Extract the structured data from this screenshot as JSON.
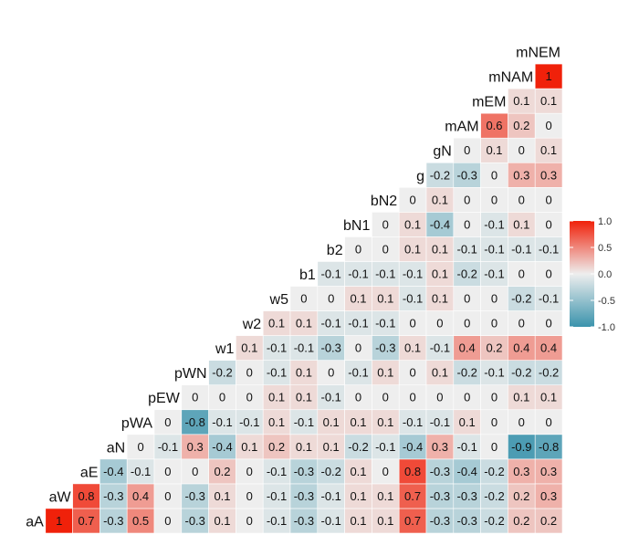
{
  "chart_data": {
    "type": "heatmap",
    "variables": [
      "aA",
      "aW",
      "aE",
      "aN",
      "pWA",
      "pEW",
      "pWN",
      "w1",
      "w2",
      "w5",
      "b1",
      "b2",
      "bN1",
      "bN2",
      "g",
      "gN",
      "mAM",
      "mEM",
      "mNAM",
      "mNEM"
    ],
    "values": [
      [
        1,
        0.7,
        -0.3,
        0.5,
        0,
        -0.3,
        0.1,
        0,
        -0.1,
        -0.3,
        -0.1,
        0.1,
        0.1,
        0.7,
        -0.3,
        -0.3,
        -0.2,
        0.2,
        0.2
      ],
      [
        0.8,
        -0.3,
        0.4,
        0,
        -0.3,
        0.1,
        0,
        -0.1,
        -0.3,
        -0.1,
        0.1,
        0.1,
        0.7,
        -0.3,
        -0.3,
        -0.2,
        0.2,
        0.3
      ],
      [
        -0.4,
        -0.1,
        0,
        0,
        0.2,
        0,
        -0.1,
        -0.3,
        -0.2,
        0.1,
        0,
        0.8,
        -0.3,
        -0.4,
        -0.2,
        0.3,
        0.3
      ],
      [
        0,
        -0.1,
        0.3,
        -0.4,
        0.1,
        0.2,
        0.1,
        0.1,
        -0.2,
        -0.1,
        -0.4,
        0.3,
        -0.1,
        0,
        -0.9,
        -0.8
      ],
      [
        0,
        -0.8,
        -0.1,
        -0.1,
        0.1,
        -0.1,
        0.1,
        0.1,
        0.1,
        -0.1,
        -0.1,
        0.1,
        0,
        0,
        0
      ],
      [
        0,
        0,
        0,
        0.1,
        0.1,
        -0.1,
        0,
        0,
        0,
        0,
        0,
        0,
        0.1,
        0.1
      ],
      [
        -0.2,
        0,
        -0.1,
        0.1,
        0,
        -0.1,
        0.1,
        0,
        0.1,
        -0.2,
        -0.1,
        -0.2,
        -0.2
      ],
      [
        0.1,
        -0.1,
        -0.1,
        -0.3,
        0,
        -0.3,
        0.1,
        -0.1,
        0.4,
        0.2,
        0.4,
        0.4
      ],
      [
        0.1,
        0.1,
        -0.1,
        -0.1,
        -0.1,
        0,
        0,
        0,
        0,
        0,
        0
      ],
      [
        0,
        0,
        0.1,
        0.1,
        -0.1,
        0.1,
        0,
        0,
        -0.2,
        -0.1
      ],
      [
        -0.1,
        -0.1,
        -0.1,
        -0.1,
        0.1,
        -0.2,
        -0.1,
        0,
        0
      ],
      [
        0,
        0,
        0.1,
        0.1,
        -0.1,
        -0.1,
        -0.1,
        -0.1
      ],
      [
        0,
        0.1,
        -0.4,
        0,
        -0.1,
        0.1,
        0
      ],
      [
        0,
        0.1,
        0,
        0,
        0,
        0
      ],
      [
        -0.2,
        -0.3,
        0,
        0.3,
        0.3
      ],
      [
        0,
        0.1,
        0,
        0.1
      ],
      [
        0.6,
        0.2,
        0
      ],
      [
        0.1,
        0.1
      ],
      [
        1
      ],
      []
    ],
    "scale": {
      "min": -1.0,
      "max": 1.0,
      "ticks": [
        1.0,
        0.5,
        0.0,
        -0.5,
        -1.0
      ],
      "tick_labels": [
        "1.0",
        "0.5",
        "0.0",
        "-0.5",
        "-1.0"
      ],
      "low_color": "#3A93AC",
      "mid_color": "#EEEEEE",
      "high_color": "#F0210A"
    },
    "legend_position": "right"
  }
}
